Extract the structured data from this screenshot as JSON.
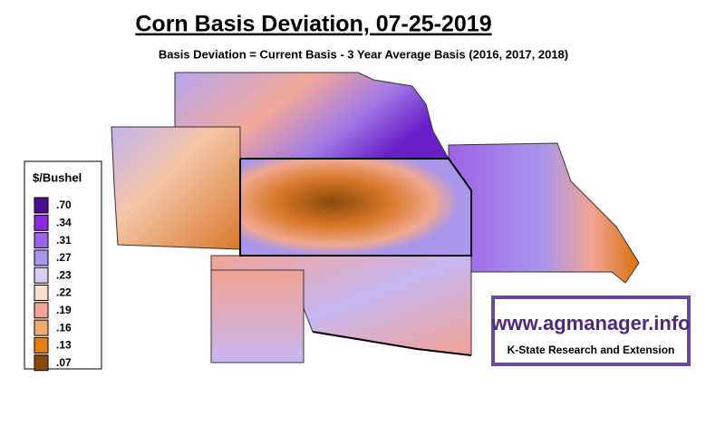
{
  "title": "Corn Basis Deviation, 07-25-2019",
  "subtitle": "Basis Deviation = Current Basis - 3 Year Average Basis (2016, 2017, 2018)",
  "legend": {
    "title": "$/Bushel",
    "items": [
      {
        "label": ".70",
        "color": "#4b0f8f"
      },
      {
        "label": ".34",
        "color": "#8a2be2"
      },
      {
        "label": ".31",
        "color": "#9d62e8"
      },
      {
        "label": ".27",
        "color": "#a996ea"
      },
      {
        "label": ".23",
        "color": "#d9cdf3"
      },
      {
        "label": ".22",
        "color": "#f7dfcb"
      },
      {
        "label": ".19",
        "color": "#f2a394"
      },
      {
        "label": ".16",
        "color": "#f2aa6a"
      },
      {
        "label": ".13",
        "color": "#e57f10"
      },
      {
        "label": ".07",
        "color": "#8a4a0a"
      }
    ]
  },
  "logo": {
    "url": "www.agmanager.info",
    "org": "K-State Research and Extension"
  }
}
